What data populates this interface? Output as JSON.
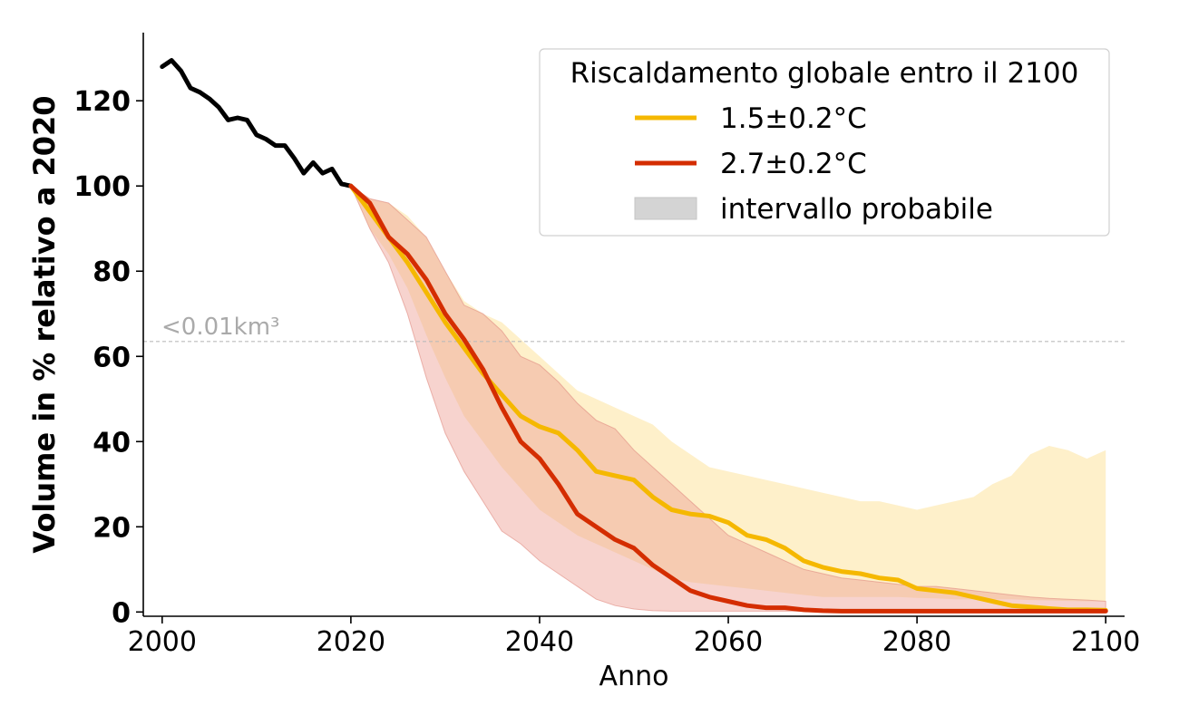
{
  "chart_data": {
    "type": "line",
    "title": "",
    "xlabel": "Anno",
    "ylabel": "Volume in % relativo a 2020",
    "xlim": [
      1998,
      2102
    ],
    "ylim": [
      -1,
      136
    ],
    "xticks": [
      2000,
      2020,
      2040,
      2060,
      2080,
      2100
    ],
    "yticks": [
      0,
      20,
      40,
      60,
      80,
      100,
      120
    ],
    "grid": false,
    "legend": {
      "title": "Riscaldamento globale entro il 2100",
      "position": "top-right",
      "entries": [
        "1.5±0.2°C",
        "2.7±0.2°C",
        "intervallo probabile"
      ]
    },
    "threshold": {
      "y": 63.5,
      "label": "<0.01km³"
    },
    "colors": {
      "historical": "#000000",
      "s15": "#f5b800",
      "s27": "#d42d00",
      "band15": "#fde9b3",
      "band27": "#ee9e92",
      "legend_band": "#d4d4d4",
      "threshold": "#bbbbbb"
    },
    "series": [
      {
        "name": "",
        "x": [
          2000,
          2001,
          2002,
          2003,
          2004,
          2005,
          2006,
          2007,
          2008,
          2009,
          2010,
          2011,
          2012,
          2013,
          2014,
          2015,
          2016,
          2017,
          2018,
          2019,
          2020
        ],
        "y": [
          128,
          129.5,
          127,
          123,
          122,
          120.5,
          118.5,
          115.5,
          116,
          115.5,
          112,
          111,
          109.5,
          109.5,
          106.5,
          103,
          105.5,
          103,
          104,
          100.5,
          100
        ]
      },
      {
        "name": "1.5±0.2°C",
        "x": [
          2020,
          2022,
          2024,
          2026,
          2028,
          2030,
          2032,
          2034,
          2036,
          2038,
          2040,
          2042,
          2044,
          2046,
          2048,
          2050,
          2052,
          2054,
          2056,
          2058,
          2060,
          2062,
          2064,
          2066,
          2068,
          2070,
          2072,
          2074,
          2076,
          2078,
          2080,
          2082,
          2084,
          2086,
          2088,
          2090,
          2092,
          2094,
          2096,
          2098,
          2100
        ],
        "y": [
          100,
          94,
          88,
          82,
          75,
          68,
          62,
          56,
          51,
          46,
          43.5,
          42,
          38,
          33,
          32,
          31,
          27,
          24,
          23,
          22.5,
          21,
          18,
          17,
          15,
          12,
          10.5,
          9.5,
          9,
          8,
          7.5,
          5.5,
          5,
          4.5,
          3.5,
          2.5,
          1.5,
          1.2,
          0.8,
          0.5,
          0.5,
          0.4
        ]
      },
      {
        "name": "2.7±0.2°C",
        "x": [
          2020,
          2022,
          2024,
          2026,
          2028,
          2030,
          2032,
          2034,
          2036,
          2038,
          2040,
          2042,
          2044,
          2046,
          2048,
          2050,
          2052,
          2054,
          2056,
          2058,
          2060,
          2062,
          2064,
          2066,
          2068,
          2070,
          2072,
          2074,
          2076,
          2078,
          2080,
          2082,
          2084,
          2086,
          2088,
          2090,
          2092,
          2094,
          2096,
          2098,
          2100
        ],
        "y": [
          100,
          96,
          88,
          84,
          78,
          70,
          64,
          57,
          48,
          40,
          36,
          30,
          23,
          20,
          17,
          15,
          11,
          8,
          5,
          3.5,
          2.5,
          1.5,
          1,
          1,
          0.5,
          0.3,
          0.2,
          0.2,
          0.2,
          0.2,
          0.2,
          0.2,
          0.2,
          0.2,
          0.2,
          0.2,
          0.2,
          0.2,
          0.2,
          0.2,
          0.2
        ]
      }
    ],
    "bands": [
      {
        "name": "1.5±0.2°C intervallo probabile",
        "x": [
          2020,
          2022,
          2024,
          2026,
          2028,
          2030,
          2032,
          2034,
          2036,
          2038,
          2040,
          2042,
          2044,
          2046,
          2048,
          2050,
          2052,
          2054,
          2056,
          2058,
          2060,
          2062,
          2064,
          2066,
          2068,
          2070,
          2072,
          2074,
          2076,
          2078,
          2080,
          2082,
          2084,
          2086,
          2088,
          2090,
          2092,
          2094,
          2096,
          2098,
          2100
        ],
        "lower": [
          100,
          90,
          84,
          76,
          65,
          55,
          46,
          40,
          34,
          29,
          24,
          21,
          18,
          16,
          14,
          12,
          10,
          8,
          7,
          6.5,
          6,
          5.5,
          5,
          4.5,
          4,
          3.5,
          3.5,
          3.5,
          3.5,
          3.5,
          3.3,
          3.2,
          3,
          3,
          3,
          3,
          2.8,
          2.7,
          2.6,
          2.5,
          2.5
        ],
        "upper": [
          100,
          97,
          96,
          93,
          88,
          80,
          73,
          70,
          68,
          64,
          60,
          56,
          52,
          50,
          48,
          46,
          44,
          40,
          37,
          34,
          33,
          32,
          31,
          30,
          29,
          28,
          27,
          26,
          26,
          25,
          24,
          25,
          26,
          27,
          30,
          32,
          37,
          39,
          38,
          36,
          38
        ]
      },
      {
        "name": "2.7±0.2°C intervallo probabile",
        "x": [
          2020,
          2022,
          2024,
          2026,
          2028,
          2030,
          2032,
          2034,
          2036,
          2038,
          2040,
          2042,
          2044,
          2046,
          2048,
          2050,
          2052,
          2054,
          2056,
          2058,
          2060,
          2062,
          2064,
          2066,
          2068,
          2070,
          2072,
          2074,
          2076,
          2078,
          2080,
          2082,
          2084,
          2086,
          2088,
          2090,
          2092,
          2094,
          2096,
          2098,
          2100
        ],
        "lower": [
          100,
          90,
          82,
          70,
          55,
          42,
          33,
          26,
          19,
          16,
          12,
          9,
          6,
          3,
          1.5,
          0.7,
          0.3,
          0.2,
          0.2,
          0.2,
          0.2,
          0.2,
          0.2,
          0.2,
          0.2,
          0.2,
          0.2,
          0.2,
          0.2,
          0.2,
          0.2,
          0.2,
          0.2,
          0.2,
          0.2,
          0.2,
          0.2,
          0.2,
          0.2,
          0.2,
          0.2
        ],
        "upper": [
          100,
          97,
          96,
          92,
          88,
          80,
          72,
          70,
          66,
          60,
          58,
          54,
          49,
          45,
          43,
          38,
          34,
          30,
          26,
          22,
          18,
          16,
          14,
          12,
          10,
          9,
          8,
          7.5,
          7,
          6.5,
          6,
          6,
          5.5,
          5,
          4.5,
          4,
          3.5,
          3.2,
          3,
          2.8,
          2.5
        ]
      }
    ]
  }
}
